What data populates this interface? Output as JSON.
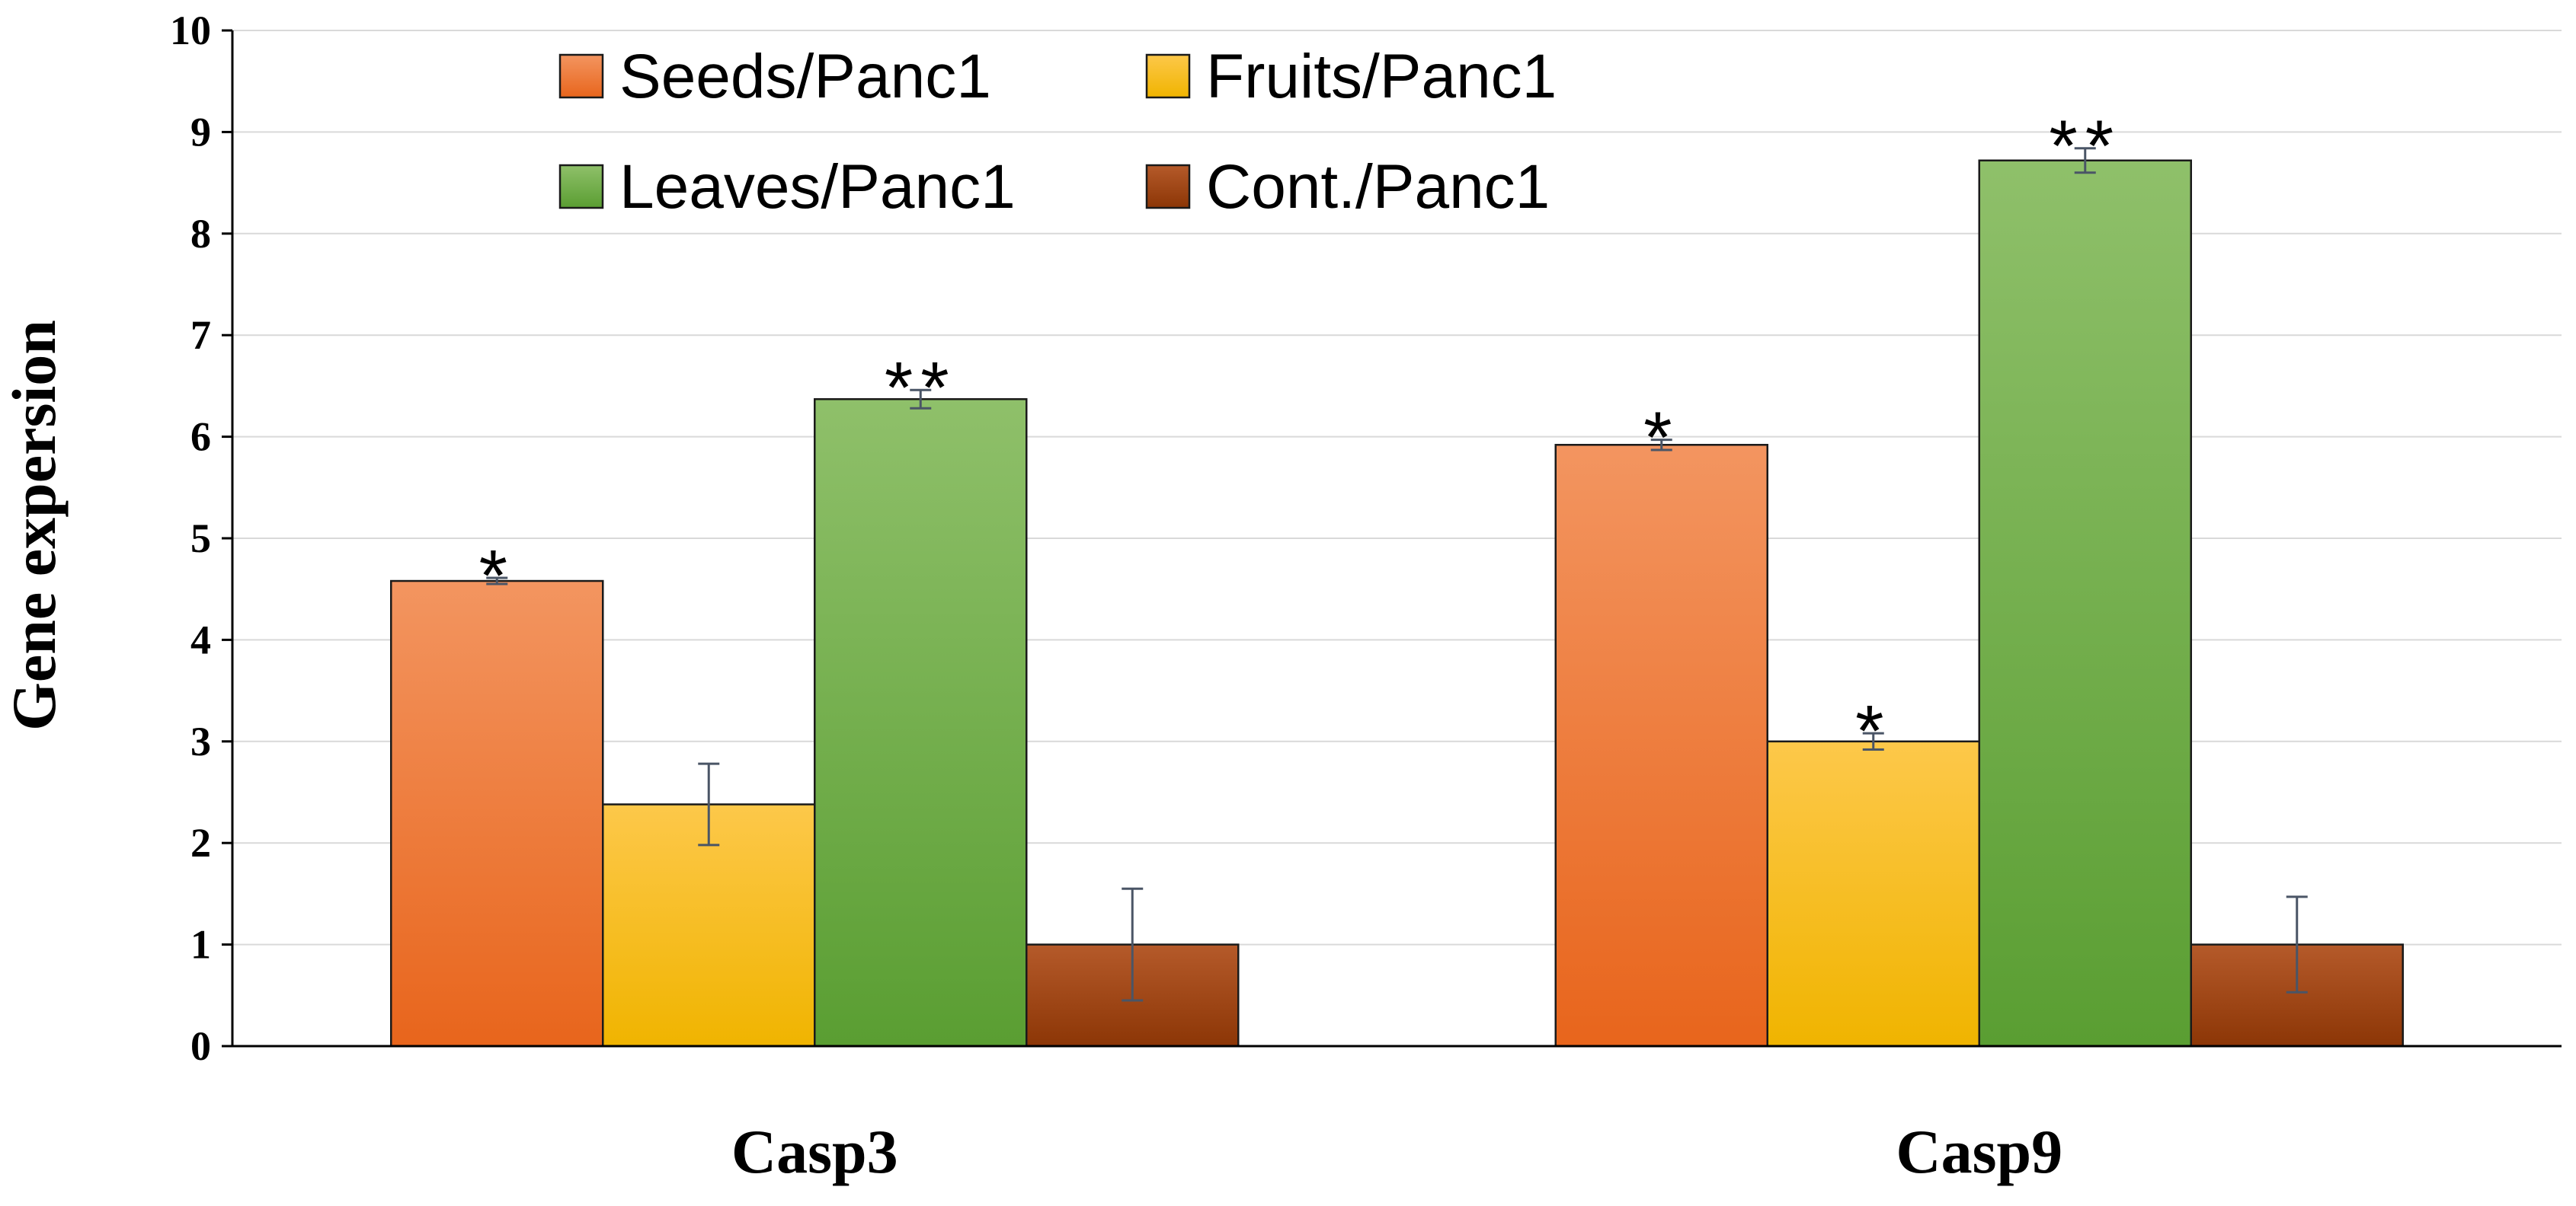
{
  "chart_data": {
    "type": "bar",
    "title": "",
    "xlabel": "",
    "ylabel": "Gene expersion",
    "ylim": [
      0,
      10
    ],
    "yticks": [
      0,
      1,
      2,
      3,
      4,
      5,
      6,
      7,
      8,
      9,
      10
    ],
    "grid": true,
    "legend": "top-center",
    "categories": [
      "Casp3",
      "Casp9"
    ],
    "series": [
      {
        "name": "Seeds/Panc1",
        "key": "seeds",
        "values": [
          4.58,
          5.92
        ],
        "errors": [
          0.03,
          0.05
        ],
        "significance": [
          "*",
          "*"
        ],
        "color_top": "#f39560",
        "color_bottom": "#e8651c"
      },
      {
        "name": "Fruits/Panc1",
        "key": "fruits",
        "values": [
          2.38,
          3.0
        ],
        "errors": [
          0.4,
          0.08
        ],
        "significance": [
          "",
          "*"
        ],
        "color_top": "#fdc84a",
        "color_bottom": "#f0b400"
      },
      {
        "name": "Leaves/Panc1",
        "key": "leaves",
        "values": [
          6.37,
          8.72
        ],
        "errors": [
          0.09,
          0.12
        ],
        "significance": [
          "**",
          "**"
        ],
        "color_top": "#8fc06a",
        "color_bottom": "#5a9e32"
      },
      {
        "name": "Cont./Panc1",
        "key": "cont",
        "values": [
          1.0,
          1.0
        ],
        "errors": [
          0.55,
          0.47
        ],
        "significance": [
          "",
          ""
        ],
        "color_top": "#b55a2a",
        "color_bottom": "#8c3606"
      }
    ]
  }
}
